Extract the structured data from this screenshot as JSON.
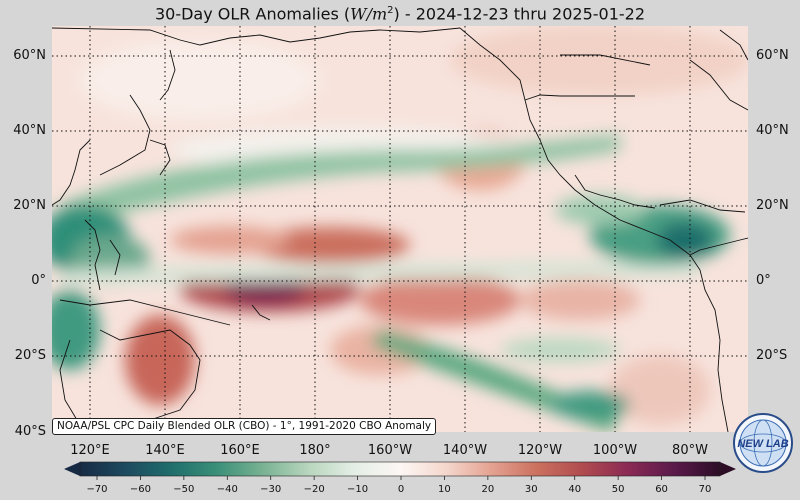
{
  "title": {
    "prefix": "30-Day OLR Anomalies (",
    "unit": "W/m",
    "unit_exp": "2",
    "suffix": ") - 2024-12-23 thru 2025-01-22"
  },
  "map": {
    "lat_labels": [
      "60°N",
      "40°N",
      "20°N",
      "0°",
      "20°S",
      "40°S"
    ],
    "lon_labels": [
      "120°E",
      "140°E",
      "160°E",
      "180°",
      "160°W",
      "140°W",
      "120°W",
      "100°W",
      "80°W"
    ],
    "credit": "NOAA/PSL CPC Daily Blended OLR (CBO) - 1°, 1991-2020 CBO Anomaly",
    "anomaly_regions": [
      {
        "region": "Maritime Continent / Philippines",
        "sign": "negative",
        "color": "#2f8f79"
      },
      {
        "region": "Central Equatorial Pacific",
        "sign": "positive",
        "color": "#8a2a55"
      },
      {
        "region": "Central America / Caribbean",
        "sign": "negative",
        "color": "#2a7a6a"
      },
      {
        "region": "Northern Australia",
        "sign": "positive",
        "color": "#c8665a"
      },
      {
        "region": "South Pacific diagonal band",
        "sign": "negative",
        "color": "#5aa87f"
      }
    ]
  },
  "colorbar": {
    "ticks": [
      "−70",
      "−60",
      "−50",
      "−40",
      "−30",
      "−20",
      "−10",
      "0",
      "10",
      "20",
      "30",
      "40",
      "50",
      "60",
      "70"
    ],
    "stops": [
      "#172a44",
      "#1d4a5f",
      "#1f6e6c",
      "#3b9079",
      "#79b293",
      "#b8d6bd",
      "#e4eee6",
      "#fdf7f4",
      "#f4d7cd",
      "#e4a291",
      "#cb705f",
      "#b04b4f",
      "#8a2a55",
      "#5a1a4a",
      "#2d0d26"
    ]
  },
  "logo": {
    "text": "NEW LAB",
    "icon": "psl-globe-logo-icon"
  }
}
